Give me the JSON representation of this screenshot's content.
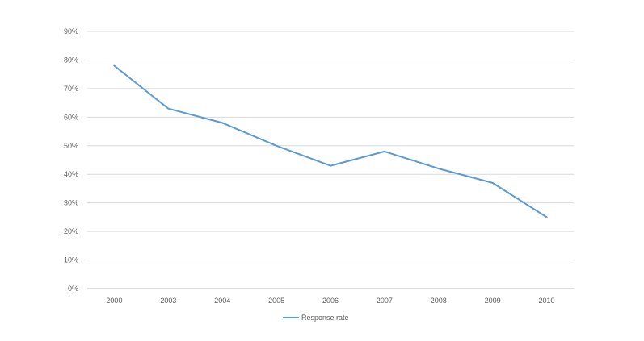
{
  "chart_data": {
    "type": "line",
    "title": "",
    "xlabel": "",
    "ylabel": "",
    "categories": [
      "2000",
      "2003",
      "2004",
      "2005",
      "2006",
      "2007",
      "2008",
      "2009",
      "2010"
    ],
    "series": [
      {
        "name": "Response rate",
        "values": [
          0.78,
          0.63,
          0.58,
          0.5,
          0.43,
          0.48,
          0.42,
          0.37,
          0.25
        ],
        "color": "#5B9BD5"
      }
    ],
    "ylim": [
      0,
      0.9
    ],
    "y_ticks": [
      {
        "value": 0.0,
        "label": "0%"
      },
      {
        "value": 0.1,
        "label": "10%"
      },
      {
        "value": 0.2,
        "label": "20%"
      },
      {
        "value": 0.3,
        "label": "30%"
      },
      {
        "value": 0.4,
        "label": "40%"
      },
      {
        "value": 0.5,
        "label": "50%"
      },
      {
        "value": 0.6,
        "label": "60%"
      },
      {
        "value": 0.7,
        "label": "70%"
      },
      {
        "value": 0.8,
        "label": "80%"
      },
      {
        "value": 0.9,
        "label": "90%"
      }
    ],
    "grid": true,
    "legend": {
      "position": "bottom",
      "entries": [
        "Response rate"
      ]
    },
    "colors": {
      "gridline": "#D9D9D9",
      "axis": "#BFBFBF",
      "text": "#595959",
      "line": "#5B9BD5"
    }
  }
}
